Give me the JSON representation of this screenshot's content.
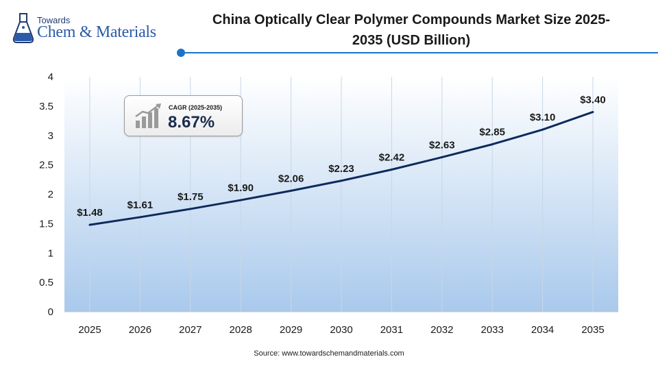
{
  "branding": {
    "logo_top": "Towards",
    "logo_main": "Chem & Materials"
  },
  "header": {
    "title_line1": "China Optically Clear Polymer Compounds Market Size 2025-",
    "title_line2": "2035 (USD Billion)",
    "accent_color": "#1a73c9"
  },
  "cagr": {
    "label": "CAGR (2025-2035)",
    "value": "8.67%"
  },
  "source": "Source: www.towardschemandmaterials.com",
  "chart_data": {
    "type": "area",
    "title": "China Optically Clear Polymer Compounds Market Size 2025-2035 (USD Billion)",
    "xlabel": "",
    "ylabel": "",
    "categories": [
      "2025",
      "2026",
      "2027",
      "2028",
      "2029",
      "2030",
      "2031",
      "2032",
      "2033",
      "2034",
      "2035"
    ],
    "series": [
      {
        "values": [
          1.48,
          1.61,
          1.75,
          1.9,
          2.06,
          2.23,
          2.42,
          2.63,
          2.85,
          3.1,
          3.4
        ],
        "labels": [
          "$1.48",
          "$1.61",
          "$1.75",
          "$1.90",
          "$2.06",
          "$2.23",
          "$2.42",
          "$2.63",
          "$2.85",
          "$3.10",
          "$3.40"
        ],
        "color": "#0d2a5c"
      }
    ],
    "yticks": [
      "0",
      "0.5",
      "1",
      "1.5",
      "2",
      "2.5",
      "3",
      "3.5",
      "4"
    ],
    "ylim": [
      0,
      4
    ],
    "grid": "vertical",
    "background_colors": [
      "#ffffff",
      "#a9c9ec"
    ]
  }
}
